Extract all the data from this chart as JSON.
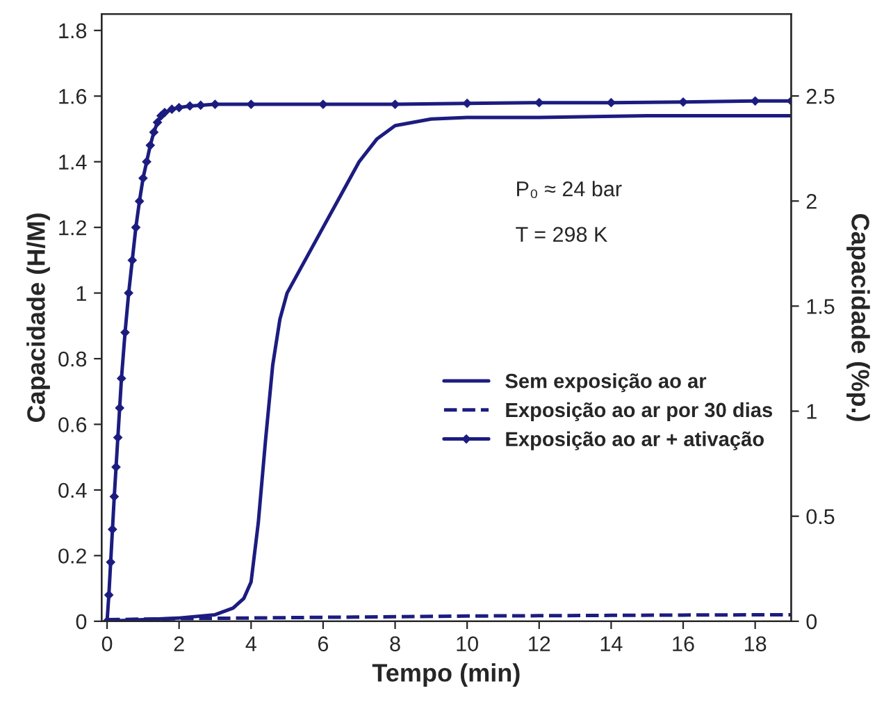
{
  "chart_data": {
    "type": "line",
    "xlabel": "Tempo (min)",
    "ylabel": "Capacidade (H/M)",
    "y2label": "Capacidade (%p.)",
    "xlim": [
      -0.15,
      19
    ],
    "xticks": [
      0,
      2,
      4,
      6,
      8,
      10,
      12,
      14,
      16,
      18
    ],
    "ylim": [
      0,
      1.85
    ],
    "yticks": [
      0,
      0.2,
      0.4,
      0.6,
      0.8,
      1,
      1.2,
      1.4,
      1.6,
      1.8
    ],
    "y2lim": [
      0,
      2.89
    ],
    "y2ticks": [
      0,
      0.5,
      1,
      1.5,
      2,
      2.5
    ],
    "legend": "center right",
    "grid": false,
    "annotations": [
      "P₀ ≈ 24 bar",
      "T = 298 K"
    ],
    "series": [
      {
        "name": "Sem exposição ao ar",
        "color": "#1c1c80",
        "line_style": "solid",
        "marker": "none",
        "x": [
          0,
          1,
          2,
          3,
          3.5,
          3.8,
          4,
          4.2,
          4.4,
          4.6,
          4.8,
          5,
          5.5,
          6,
          6.5,
          7,
          7.5,
          8,
          9,
          10,
          12,
          15,
          19
        ],
        "values": [
          0,
          0.005,
          0.01,
          0.02,
          0.04,
          0.07,
          0.12,
          0.3,
          0.55,
          0.78,
          0.92,
          1.0,
          1.1,
          1.2,
          1.3,
          1.4,
          1.47,
          1.51,
          1.53,
          1.535,
          1.535,
          1.54,
          1.54
        ]
      },
      {
        "name": "Exposição ao ar por 30 dias",
        "color": "#1c1c80",
        "line_style": "dashed",
        "marker": "none",
        "x": [
          0,
          2,
          4,
          6,
          8,
          10,
          12,
          14,
          16,
          19
        ],
        "values": [
          0.005,
          0.008,
          0.01,
          0.012,
          0.014,
          0.016,
          0.017,
          0.018,
          0.019,
          0.02
        ]
      },
      {
        "name": "Exposição ao ar + ativação",
        "color": "#1c1c80",
        "line_style": "solid",
        "marker": "diamond",
        "x": [
          0,
          0.05,
          0.1,
          0.15,
          0.2,
          0.25,
          0.3,
          0.35,
          0.4,
          0.5,
          0.6,
          0.7,
          0.8,
          0.9,
          1.0,
          1.1,
          1.2,
          1.3,
          1.4,
          1.5,
          1.6,
          1.8,
          2.0,
          2.3,
          2.6,
          3.0,
          4,
          6,
          8,
          10,
          12,
          14,
          16,
          18,
          19
        ],
        "values": [
          0,
          0.08,
          0.18,
          0.28,
          0.38,
          0.47,
          0.56,
          0.65,
          0.74,
          0.88,
          1.0,
          1.1,
          1.2,
          1.28,
          1.35,
          1.4,
          1.45,
          1.49,
          1.52,
          1.54,
          1.55,
          1.56,
          1.565,
          1.57,
          1.572,
          1.575,
          1.575,
          1.575,
          1.575,
          1.578,
          1.58,
          1.58,
          1.582,
          1.585,
          1.585
        ]
      }
    ]
  }
}
